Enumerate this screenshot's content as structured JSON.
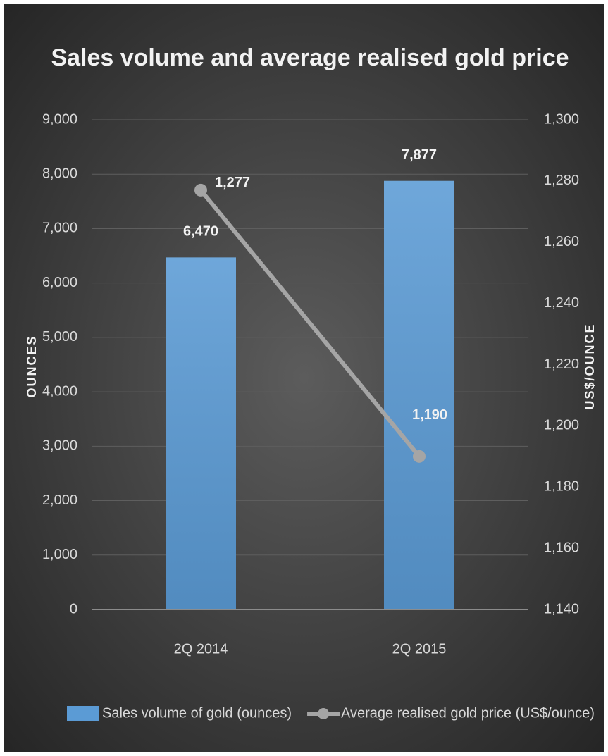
{
  "chart_data": {
    "type": "bar",
    "title": "Sales volume and average realised gold price",
    "categories": [
      "2Q 2014",
      "2Q 2015"
    ],
    "series": [
      {
        "name": "Sales volume of gold (ounces)",
        "type": "bar",
        "color": "#5b9bd5",
        "values": [
          6470,
          7877
        ],
        "value_labels": [
          "6,470",
          "7,877"
        ]
      },
      {
        "name": "Average realised gold price (US$/ounce)",
        "type": "line",
        "axis": "y2",
        "color": "#a5a5a5",
        "values": [
          1277,
          1190
        ],
        "value_labels": [
          "1,277",
          "1,190"
        ]
      }
    ],
    "y_label": "OUNCES",
    "y2_label": "US$/OUNCE",
    "ylim": [
      0,
      9000
    ],
    "yticks": [
      0,
      {
        "value": 1000,
        "label": "1,000"
      },
      {
        "value": 2000,
        "label": "2,000"
      },
      {
        "value": 3000,
        "label": "3,000"
      },
      {
        "value": 4000,
        "label": "4,000"
      },
      {
        "value": 5000,
        "label": "5,000"
      },
      {
        "value": 6000,
        "label": "6,000"
      },
      {
        "value": 7000,
        "label": "7,000"
      },
      {
        "value": 8000,
        "label": "8,000"
      },
      {
        "value": 9000,
        "label": "9,000"
      }
    ],
    "y2lim": [
      1140,
      1300
    ],
    "y2ticks": [
      {
        "value": 1140,
        "label": "1,140"
      },
      {
        "value": 1160,
        "label": "1,160"
      },
      {
        "value": 1180,
        "label": "1,180"
      },
      {
        "value": 1200,
        "label": "1,200"
      },
      {
        "value": 1220,
        "label": "1,220"
      },
      {
        "value": 1240,
        "label": "1,240"
      },
      {
        "value": 1260,
        "label": "1,260"
      },
      {
        "value": 1280,
        "label": "1,280"
      },
      {
        "value": 1300,
        "label": "1,300"
      }
    ],
    "grid": true,
    "legend": "bottom"
  }
}
